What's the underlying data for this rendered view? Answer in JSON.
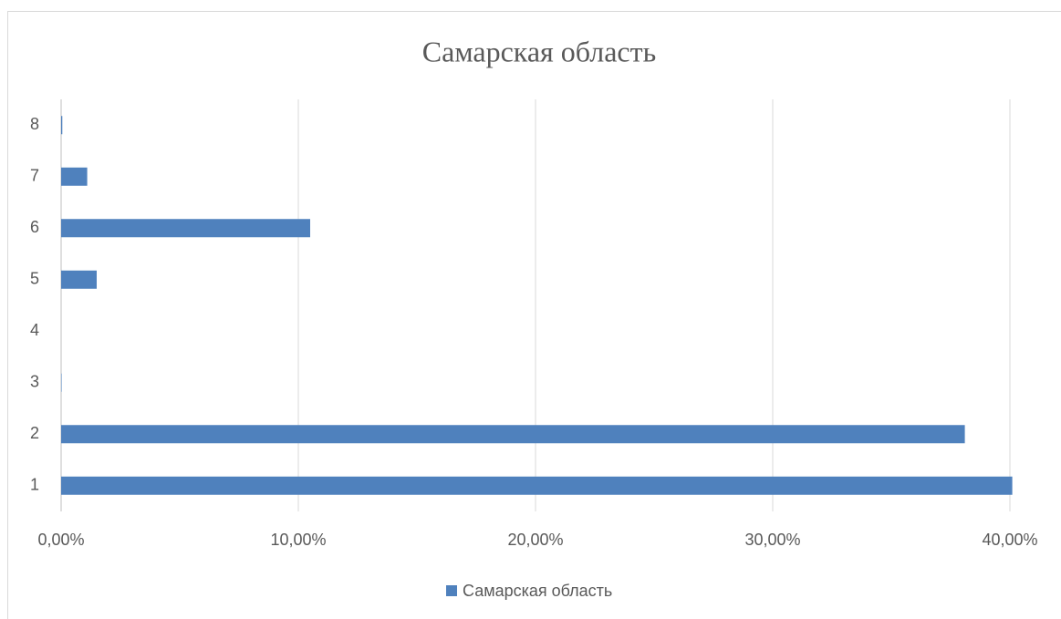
{
  "chart_data": {
    "type": "hbar",
    "title": "Самарская область",
    "categories": [
      "1",
      "2",
      "3",
      "4",
      "5",
      "6",
      "7",
      "8"
    ],
    "series": [
      {
        "name": "Самарская область",
        "color": "#4f81bd",
        "values": [
          40.1,
          38.1,
          0.02,
          0,
          1.5,
          10.5,
          1.1,
          0.05
        ]
      }
    ],
    "xlim": [
      0,
      40
    ],
    "xticks": [
      {
        "value": 0,
        "label": "0,00%"
      },
      {
        "value": 10,
        "label": "10,00%"
      },
      {
        "value": 20,
        "label": "20,00%"
      },
      {
        "value": 30,
        "label": "30,00%"
      },
      {
        "value": 40,
        "label": "40,00%"
      }
    ],
    "grid": true,
    "legend": "bottom"
  }
}
